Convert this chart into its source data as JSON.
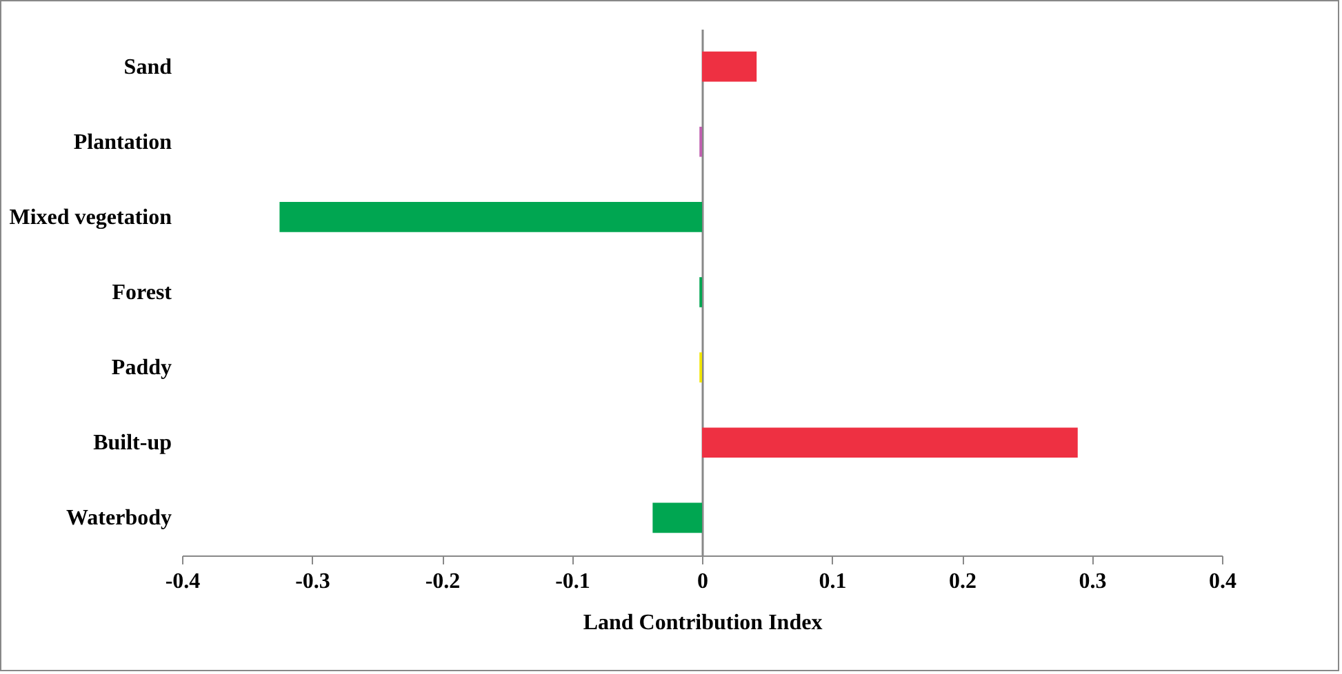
{
  "chart_data": {
    "type": "bar",
    "orientation": "horizontal",
    "xlabel": "Land Contribution Index",
    "categories": [
      "Sand",
      "Plantation",
      "Mixed vegetation",
      "Forest",
      "Paddy",
      "Built-up",
      "Waterbody"
    ],
    "values": [
      0.042,
      -0.002,
      -0.325,
      -0.002,
      -0.002,
      0.289,
      -0.038
    ],
    "colors": [
      "#ee3042",
      "#c05fb0",
      "#00a651",
      "#00a651",
      "#f2e600",
      "#ee3042",
      "#00a651"
    ],
    "xlim": [
      -0.4,
      0.4
    ],
    "xticks": [
      -0.4,
      -0.3,
      -0.2,
      -0.1,
      0,
      0.1,
      0.2,
      0.3,
      0.4
    ]
  }
}
